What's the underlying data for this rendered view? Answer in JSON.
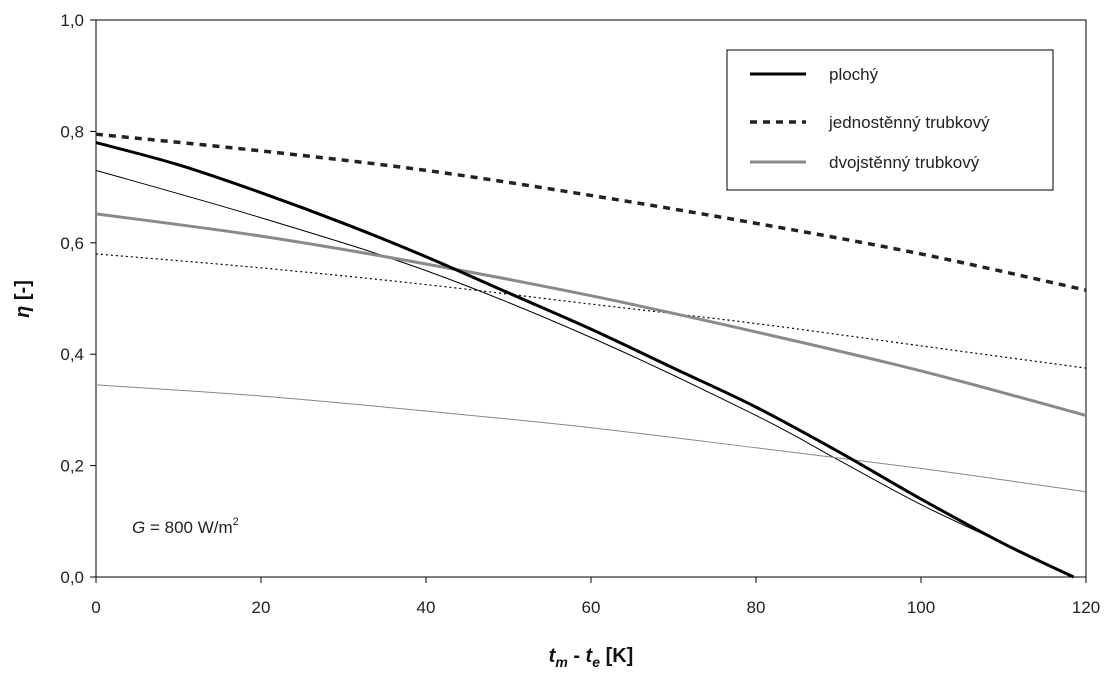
{
  "chart_data": {
    "type": "line",
    "xlabel_parts": {
      "t1": "t",
      "s1": "m",
      "sep": " - ",
      "t2": "t",
      "s2": "e",
      "unit": " [K]"
    },
    "ylabel_parts": {
      "symbol": "η",
      "unit": " [-]"
    },
    "xlim": [
      0,
      120
    ],
    "ylim": [
      0,
      1.0
    ],
    "x_ticks": [
      0,
      20,
      40,
      60,
      80,
      100,
      120
    ],
    "y_ticks": [
      0.0,
      0.2,
      0.4,
      0.6,
      0.8,
      1.0
    ],
    "x_tick_labels": [
      "0",
      "20",
      "40",
      "60",
      "80",
      "100",
      "120"
    ],
    "y_tick_labels": [
      "0,0",
      "0,2",
      "0,4",
      "0,6",
      "0,8",
      "1,0"
    ],
    "grid": false,
    "legend_placement": "top-right",
    "annotation": {
      "symbol": "G",
      "rest": " = 800 W/m",
      "sup": "2"
    },
    "series": [
      {
        "name": "plochý",
        "in_legend": true,
        "color": "#000000",
        "dash": "",
        "width": 3,
        "x": [
          0,
          10,
          20,
          30,
          40,
          50,
          60,
          70,
          80,
          90,
          100,
          110,
          118.5
        ],
        "y": [
          0.78,
          0.74,
          0.69,
          0.635,
          0.575,
          0.51,
          0.445,
          0.375,
          0.305,
          0.225,
          0.14,
          0.06,
          0.0
        ]
      },
      {
        "name": "jednostěnný trubkový",
        "in_legend": true,
        "color": "#222222",
        "dash": "7,6",
        "width": 3.5,
        "x": [
          0,
          20,
          40,
          60,
          80,
          100,
          120
        ],
        "y": [
          0.795,
          0.765,
          0.73,
          0.685,
          0.635,
          0.58,
          0.515
        ]
      },
      {
        "name": "dvojstěnný trubkový",
        "in_legend": true,
        "color": "#8a8a8a",
        "dash": "",
        "width": 3,
        "x": [
          0,
          20,
          40,
          60,
          80,
          100,
          120
        ],
        "y": [
          0.652,
          0.612,
          0.562,
          0.505,
          0.44,
          0.37,
          0.29
        ]
      },
      {
        "name": "",
        "in_legend": false,
        "color": "#000000",
        "dash": "",
        "width": 1,
        "x": [
          0,
          20,
          40,
          60,
          80,
          90,
          100,
          110,
          118.5
        ],
        "y": [
          0.73,
          0.645,
          0.55,
          0.43,
          0.29,
          0.21,
          0.13,
          0.06,
          0.0
        ]
      },
      {
        "name": "",
        "in_legend": false,
        "color": "#000000",
        "dash": "2,3",
        "width": 1.2,
        "x": [
          0,
          20,
          40,
          60,
          80,
          100,
          120
        ],
        "y": [
          0.58,
          0.555,
          0.525,
          0.49,
          0.455,
          0.415,
          0.375
        ]
      },
      {
        "name": "",
        "in_legend": false,
        "color": "#888888",
        "dash": "",
        "width": 1,
        "x": [
          0,
          20,
          40,
          60,
          80,
          100,
          120
        ],
        "y": [
          0.345,
          0.325,
          0.298,
          0.268,
          0.232,
          0.195,
          0.153
        ]
      }
    ]
  }
}
